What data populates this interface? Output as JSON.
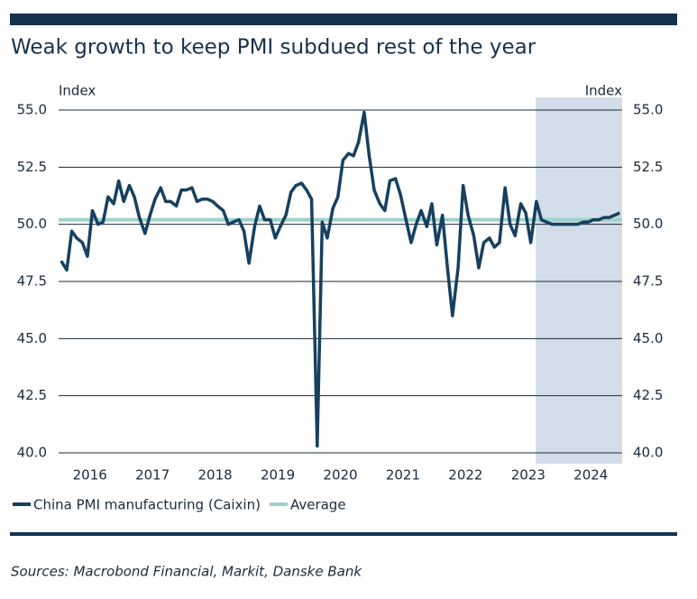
{
  "chart_data": {
    "type": "line",
    "title": "Weak growth to keep PMI subdued rest of the year",
    "y_label": "Index",
    "y2_label": "Index",
    "source": "Sources: Macrobond Financial, Markit, Danske Bank",
    "x": [
      2016.04,
      2016.13,
      2016.21,
      2016.29,
      2016.38,
      2016.46,
      2016.54,
      2016.63,
      2016.71,
      2016.79,
      2016.88,
      2016.96,
      2017.04,
      2017.13,
      2017.21,
      2017.29,
      2017.38,
      2017.46,
      2017.54,
      2017.63,
      2017.71,
      2017.79,
      2017.88,
      2017.96,
      2018.04,
      2018.13,
      2018.21,
      2018.29,
      2018.38,
      2018.46,
      2018.54,
      2018.63,
      2018.71,
      2018.79,
      2018.88,
      2018.96,
      2019.04,
      2019.13,
      2019.21,
      2019.29,
      2019.38,
      2019.46,
      2019.54,
      2019.63,
      2019.71,
      2019.79,
      2019.88,
      2019.96,
      2020.04,
      2020.13,
      2020.21,
      2020.29,
      2020.38,
      2020.46,
      2020.54,
      2020.63,
      2020.71,
      2020.79,
      2020.88,
      2020.96,
      2021.04,
      2021.13,
      2021.21,
      2021.29,
      2021.38,
      2021.46,
      2021.54,
      2021.63,
      2021.71,
      2021.79,
      2021.88,
      2021.96,
      2022.04,
      2022.13,
      2022.21,
      2022.29,
      2022.38,
      2022.46,
      2022.54,
      2022.63,
      2022.71,
      2022.79,
      2022.88,
      2022.96,
      2023.04,
      2023.13,
      2023.21,
      2023.29,
      2023.38,
      2023.46,
      2023.54,
      2023.63,
      2023.71,
      2023.79,
      2023.88,
      2023.96,
      2024.04,
      2024.13,
      2024.21,
      2024.29,
      2024.38,
      2024.46,
      2024.54,
      2024.63,
      2024.71,
      2024.79,
      2024.88,
      2024.96
    ],
    "series": [
      {
        "name": "China PMI manufacturing (Caixin)",
        "color": "#17405f",
        "values": [
          48.4,
          48.0,
          49.7,
          49.4,
          49.2,
          48.6,
          50.6,
          50.0,
          50.1,
          51.2,
          50.9,
          51.9,
          51.0,
          51.7,
          51.2,
          50.3,
          49.6,
          50.4,
          51.1,
          51.6,
          51.0,
          51.0,
          50.8,
          51.5,
          51.5,
          51.6,
          51.0,
          51.1,
          51.1,
          51.0,
          50.8,
          50.6,
          50.0,
          50.1,
          50.2,
          49.7,
          48.3,
          49.9,
          50.8,
          50.2,
          50.2,
          49.4,
          49.9,
          50.4,
          51.4,
          51.7,
          51.8,
          51.5,
          51.1,
          40.3,
          50.1,
          49.4,
          50.7,
          51.2,
          52.8,
          53.1,
          53.0,
          53.6,
          54.9,
          53.0,
          51.5,
          50.9,
          50.6,
          51.9,
          52.0,
          51.3,
          50.3,
          49.2,
          50.0,
          50.6,
          49.9,
          50.9,
          49.1,
          50.4,
          48.1,
          46.0,
          48.1,
          51.7,
          50.4,
          49.5,
          48.1,
          49.2,
          49.4,
          49.0,
          49.2,
          51.6,
          50.0,
          49.5,
          50.9,
          50.5,
          49.2,
          51.0,
          50.2,
          50.1,
          50.0,
          50.0,
          50.0,
          50.0,
          50.0,
          50.0,
          50.1,
          50.1,
          50.2,
          50.2,
          50.3,
          50.3,
          50.4,
          50.5
        ]
      }
    ],
    "reference_line": {
      "name": "Average",
      "color": "#9dd2cc",
      "value": 50.2
    },
    "shaded_region": [
      2023.62,
      2025
    ],
    "xlim": [
      2016,
      2025
    ],
    "xticks": [
      {
        "value": 2016.5,
        "label": "2016"
      },
      {
        "value": 2017.5,
        "label": "2017"
      },
      {
        "value": 2018.5,
        "label": "2018"
      },
      {
        "value": 2019.5,
        "label": "2019"
      },
      {
        "value": 2020.5,
        "label": "2020"
      },
      {
        "value": 2021.5,
        "label": "2021"
      },
      {
        "value": 2022.5,
        "label": "2022"
      },
      {
        "value": 2023.5,
        "label": "2023"
      },
      {
        "value": 2024.5,
        "label": "2024"
      }
    ],
    "ylim": [
      40,
      55
    ],
    "yticks": [
      {
        "value": 40,
        "label": "40.0"
      },
      {
        "value": 42.5,
        "label": "42.5"
      },
      {
        "value": 45,
        "label": "45.0"
      },
      {
        "value": 47.5,
        "label": "47.5"
      },
      {
        "value": 50,
        "label": "50.0"
      },
      {
        "value": 52.5,
        "label": "52.5"
      },
      {
        "value": 55,
        "label": "55.0"
      }
    ],
    "y2lim": [
      40,
      55
    ],
    "y2ticks": [
      {
        "value": 40,
        "label": "40.0"
      },
      {
        "value": 42.5,
        "label": "42.5"
      },
      {
        "value": 45,
        "label": "45.0"
      },
      {
        "value": 47.5,
        "label": "47.5"
      },
      {
        "value": 50,
        "label": "50.0"
      },
      {
        "value": 52.5,
        "label": "52.5"
      },
      {
        "value": 55,
        "label": "55.0"
      }
    ],
    "grid": true
  }
}
